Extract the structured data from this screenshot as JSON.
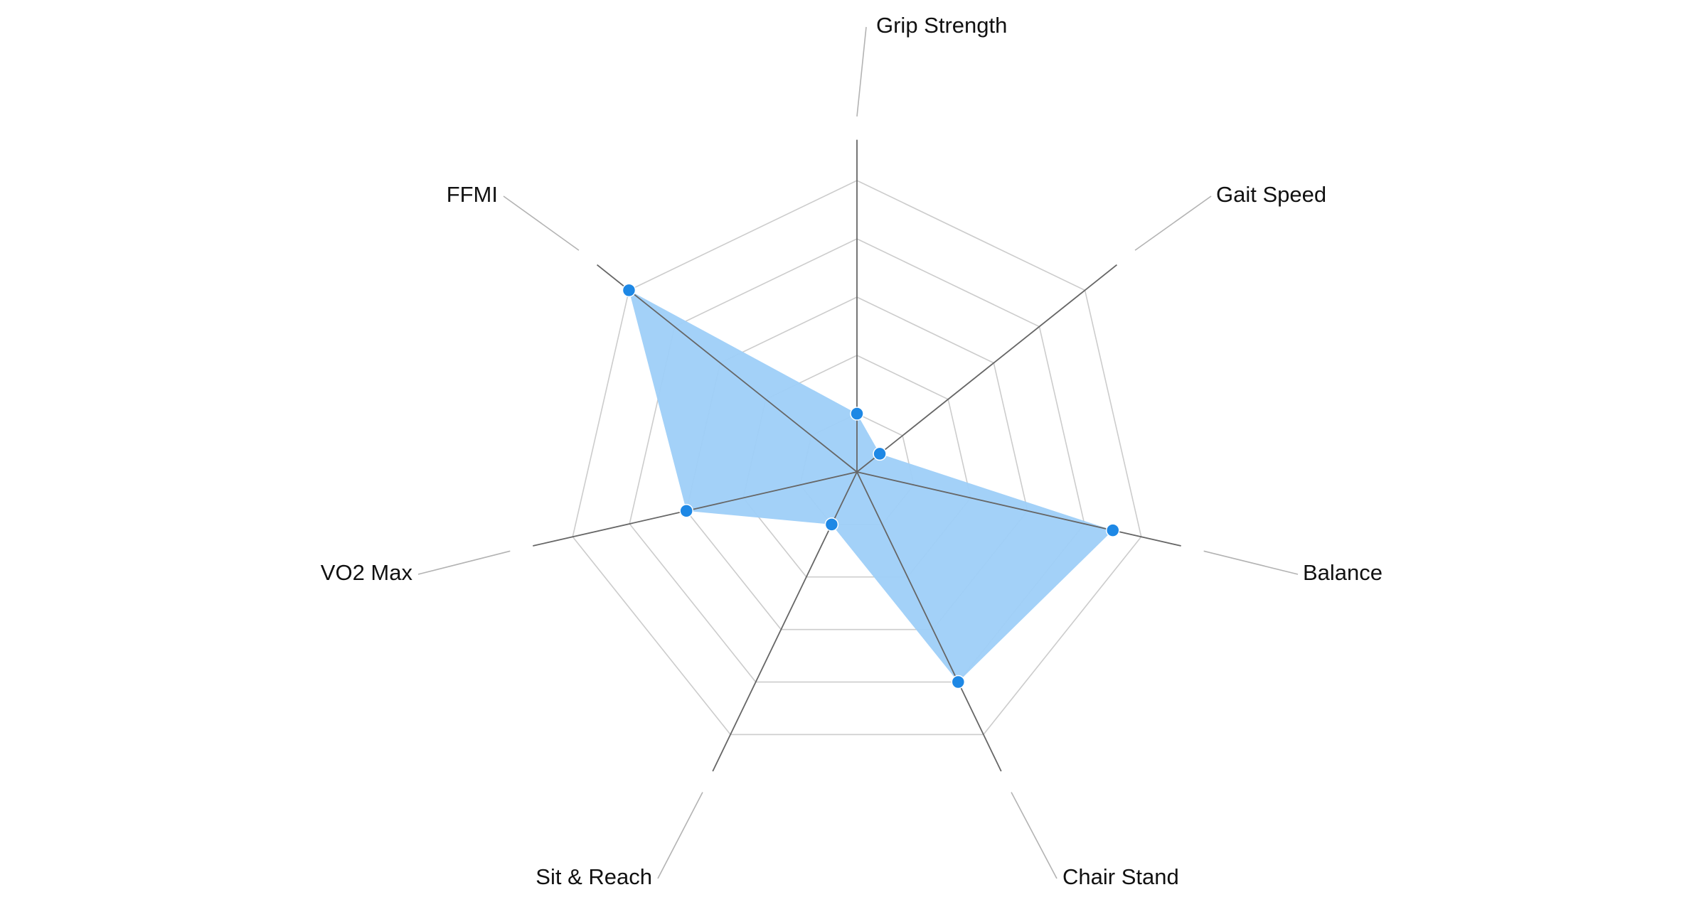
{
  "chart_data": {
    "type": "radar",
    "axes": [
      "Grip Strength",
      "Gait Speed",
      "Balance",
      "Chair Stand",
      "Sit & Reach",
      "VO2 Max",
      "FFMI"
    ],
    "series": [
      {
        "values": [
          20,
          10,
          90,
          80,
          20,
          60,
          100
        ]
      }
    ],
    "range": [
      0,
      100
    ],
    "grid_levels": [
      20,
      40,
      60,
      80,
      100
    ],
    "colors": {
      "fill": "#9ecff8",
      "point": "#1e88e5",
      "grid": "#cccccc",
      "axis": "#666666",
      "leader": "#b3b3b3"
    }
  }
}
